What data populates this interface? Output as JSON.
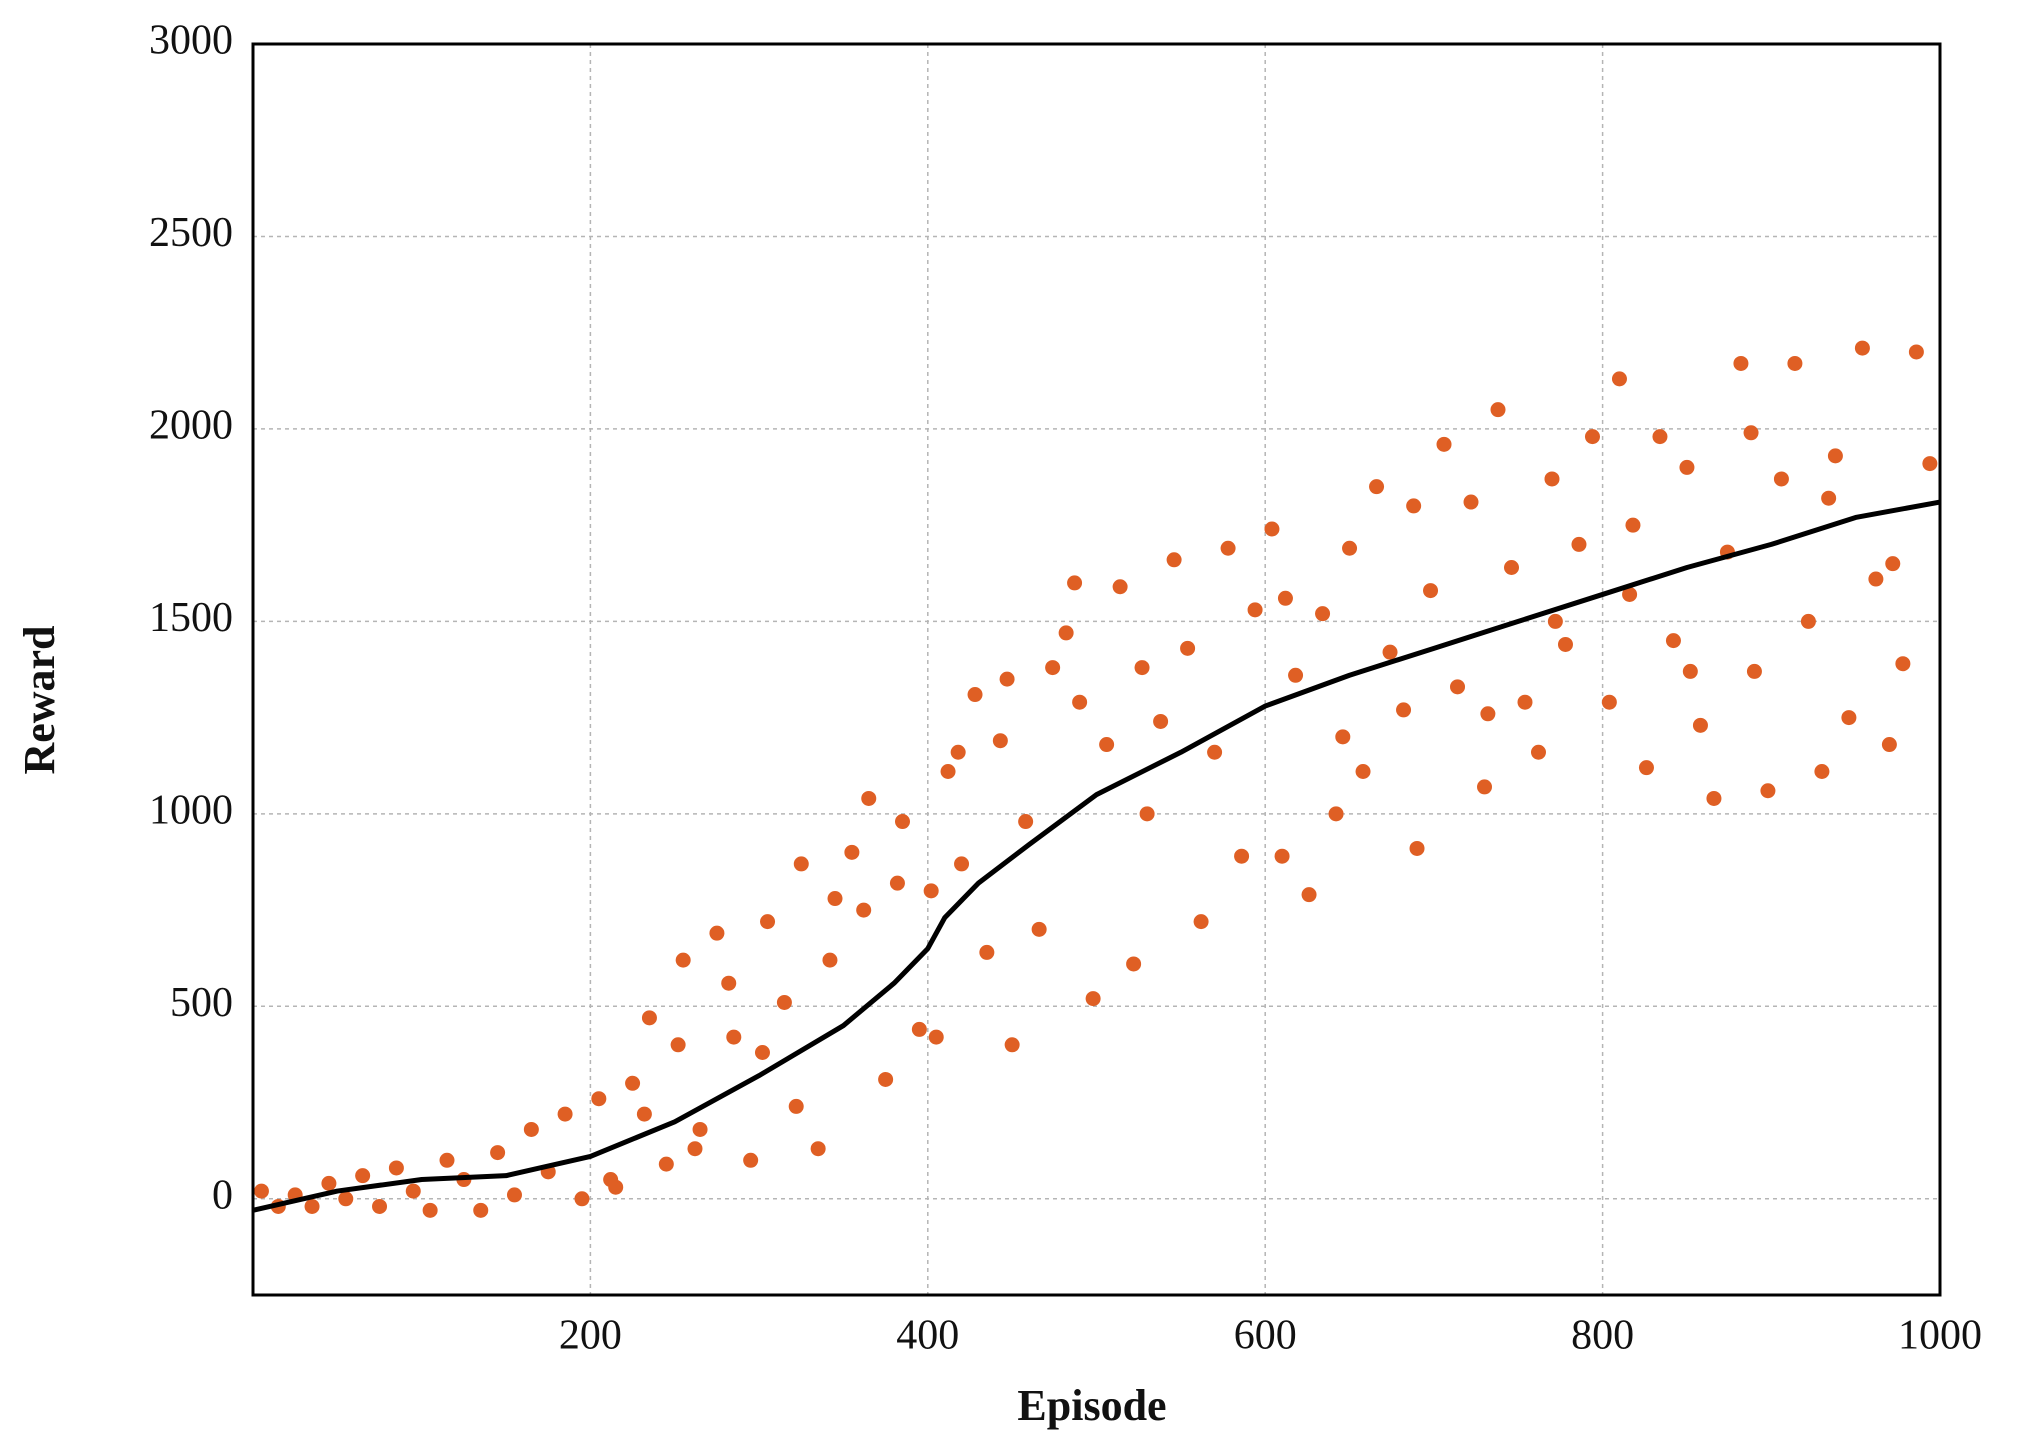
{
  "chart_data": {
    "type": "scatter",
    "xlabel": "Episode",
    "ylabel": "Reward",
    "xlim": [
      0,
      1000
    ],
    "ylim": [
      -250,
      3000
    ],
    "xticks": [
      200,
      400,
      600,
      800,
      1000
    ],
    "yticks": [
      0,
      500,
      1000,
      1500,
      2000,
      2500,
      3000
    ],
    "grid": true,
    "points": {
      "color": "#df5f24",
      "x": [
        5,
        15,
        25,
        35,
        45,
        55,
        65,
        75,
        85,
        95,
        105,
        115,
        125,
        135,
        145,
        155,
        165,
        175,
        185,
        195,
        205,
        215,
        225,
        235,
        245,
        255,
        265,
        275,
        285,
        295,
        305,
        315,
        325,
        335,
        345,
        355,
        365,
        375,
        385,
        395,
        212,
        232,
        252,
        262,
        282,
        302,
        322,
        342,
        362,
        382,
        405,
        412,
        420,
        428,
        435,
        443,
        450,
        458,
        466,
        474,
        482,
        490,
        498,
        506,
        514,
        522,
        530,
        538,
        546,
        554,
        562,
        570,
        578,
        586,
        594,
        402,
        418,
        447,
        487,
        527,
        604,
        610,
        618,
        626,
        634,
        642,
        650,
        658,
        666,
        674,
        682,
        690,
        698,
        706,
        714,
        722,
        730,
        738,
        746,
        754,
        762,
        770,
        778,
        786,
        794,
        612,
        646,
        688,
        732,
        772,
        804,
        810,
        818,
        826,
        834,
        842,
        850,
        858,
        866,
        874,
        882,
        890,
        898,
        906,
        914,
        922,
        930,
        938,
        946,
        954,
        962,
        970,
        978,
        986,
        994,
        816,
        852,
        888,
        934,
        972
      ],
      "y": [
        20,
        -20,
        10,
        -20,
        40,
        0,
        60,
        -20,
        80,
        20,
        -30,
        100,
        50,
        -30,
        120,
        10,
        180,
        70,
        220,
        0,
        260,
        30,
        300,
        470,
        90,
        620,
        180,
        690,
        420,
        100,
        720,
        510,
        870,
        130,
        780,
        900,
        1040,
        310,
        980,
        440,
        50,
        220,
        400,
        130,
        560,
        380,
        240,
        620,
        750,
        820,
        420,
        1110,
        870,
        1310,
        640,
        1190,
        400,
        980,
        700,
        1380,
        1470,
        1290,
        520,
        1180,
        1590,
        610,
        1000,
        1240,
        1660,
        1430,
        720,
        1160,
        1690,
        890,
        1530,
        800,
        1160,
        1350,
        1600,
        1380,
        1740,
        890,
        1360,
        790,
        1520,
        1000,
        1690,
        1110,
        1850,
        1420,
        1270,
        910,
        1580,
        1960,
        1330,
        1810,
        1070,
        2050,
        1640,
        1290,
        1160,
        1870,
        1440,
        1700,
        1980,
        1560,
        1200,
        1800,
        1260,
        1500,
        1290,
        2130,
        1750,
        1120,
        1980,
        1450,
        1900,
        1230,
        1040,
        1680,
        2170,
        1370,
        1060,
        1870,
        2170,
        1500,
        1110,
        1930,
        1250,
        2210,
        1610,
        1180,
        1390,
        2200,
        1910,
        1570,
        1370,
        1990,
        1820,
        1650
      ]
    },
    "line": {
      "color": "#000000",
      "x": [
        0,
        50,
        100,
        150,
        200,
        250,
        300,
        350,
        380,
        400,
        410,
        430,
        460,
        500,
        550,
        600,
        650,
        700,
        750,
        800,
        850,
        900,
        950,
        1000
      ],
      "y": [
        -30,
        20,
        50,
        60,
        110,
        200,
        320,
        450,
        560,
        650,
        730,
        820,
        920,
        1050,
        1160,
        1280,
        1360,
        1430,
        1500,
        1570,
        1640,
        1700,
        1770,
        1810
      ]
    }
  }
}
